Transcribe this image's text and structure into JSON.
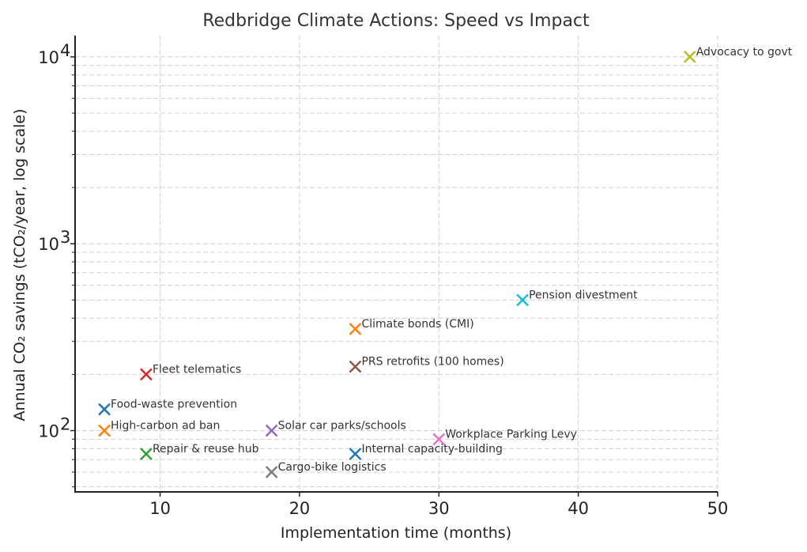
{
  "chart_data": {
    "type": "scatter",
    "title": "Redbridge Climate Actions: Speed vs Impact",
    "xlabel": "Implementation time (months)",
    "ylabel": "Annual CO₂ savings (tCO₂/year, log scale)",
    "xscale": "linear",
    "yscale": "log",
    "xlim": [
      3.9,
      50
    ],
    "ylim": [
      47,
      13000
    ],
    "xticks": [
      10,
      20,
      30,
      40,
      50
    ],
    "xtick_labels": [
      "10",
      "20",
      "30",
      "40",
      "50"
    ],
    "yticks": [
      100,
      1000,
      10000
    ],
    "ytick_labels": [
      {
        "base": "10",
        "exp": "2"
      },
      {
        "base": "10",
        "exp": "3"
      },
      {
        "base": "10",
        "exp": "4"
      }
    ],
    "grid": true,
    "marker": "x",
    "points": [
      {
        "label": "Food-waste prevention",
        "x": 6,
        "y": 130,
        "color": "#1f77b4"
      },
      {
        "label": "High-carbon ad ban",
        "x": 6,
        "y": 100,
        "color": "#ff7f0e"
      },
      {
        "label": "Repair & reuse hub",
        "x": 9,
        "y": 75,
        "color": "#2ca02c"
      },
      {
        "label": "Fleet telematics",
        "x": 9,
        "y": 200,
        "color": "#d62728"
      },
      {
        "label": "Solar car parks/schools",
        "x": 18,
        "y": 100,
        "color": "#9467bd"
      },
      {
        "label": "PRS retrofits (100 homes)",
        "x": 24,
        "y": 220,
        "color": "#8c564b"
      },
      {
        "label": "Workplace Parking Levy",
        "x": 30,
        "y": 90,
        "color": "#e377c2"
      },
      {
        "label": "Cargo-bike logistics",
        "x": 18,
        "y": 60,
        "color": "#7f7f7f"
      },
      {
        "label": "Advocacy to govt",
        "x": 48,
        "y": 10000,
        "color": "#bcbd22"
      },
      {
        "label": "Pension divestment",
        "x": 36,
        "y": 500,
        "color": "#17becf"
      },
      {
        "label": "Internal capacity-building",
        "x": 24,
        "y": 75,
        "color": "#1f77b4"
      },
      {
        "label": "Climate bonds (CMI)",
        "x": 24,
        "y": 350,
        "color": "#ff7f0e"
      }
    ]
  }
}
